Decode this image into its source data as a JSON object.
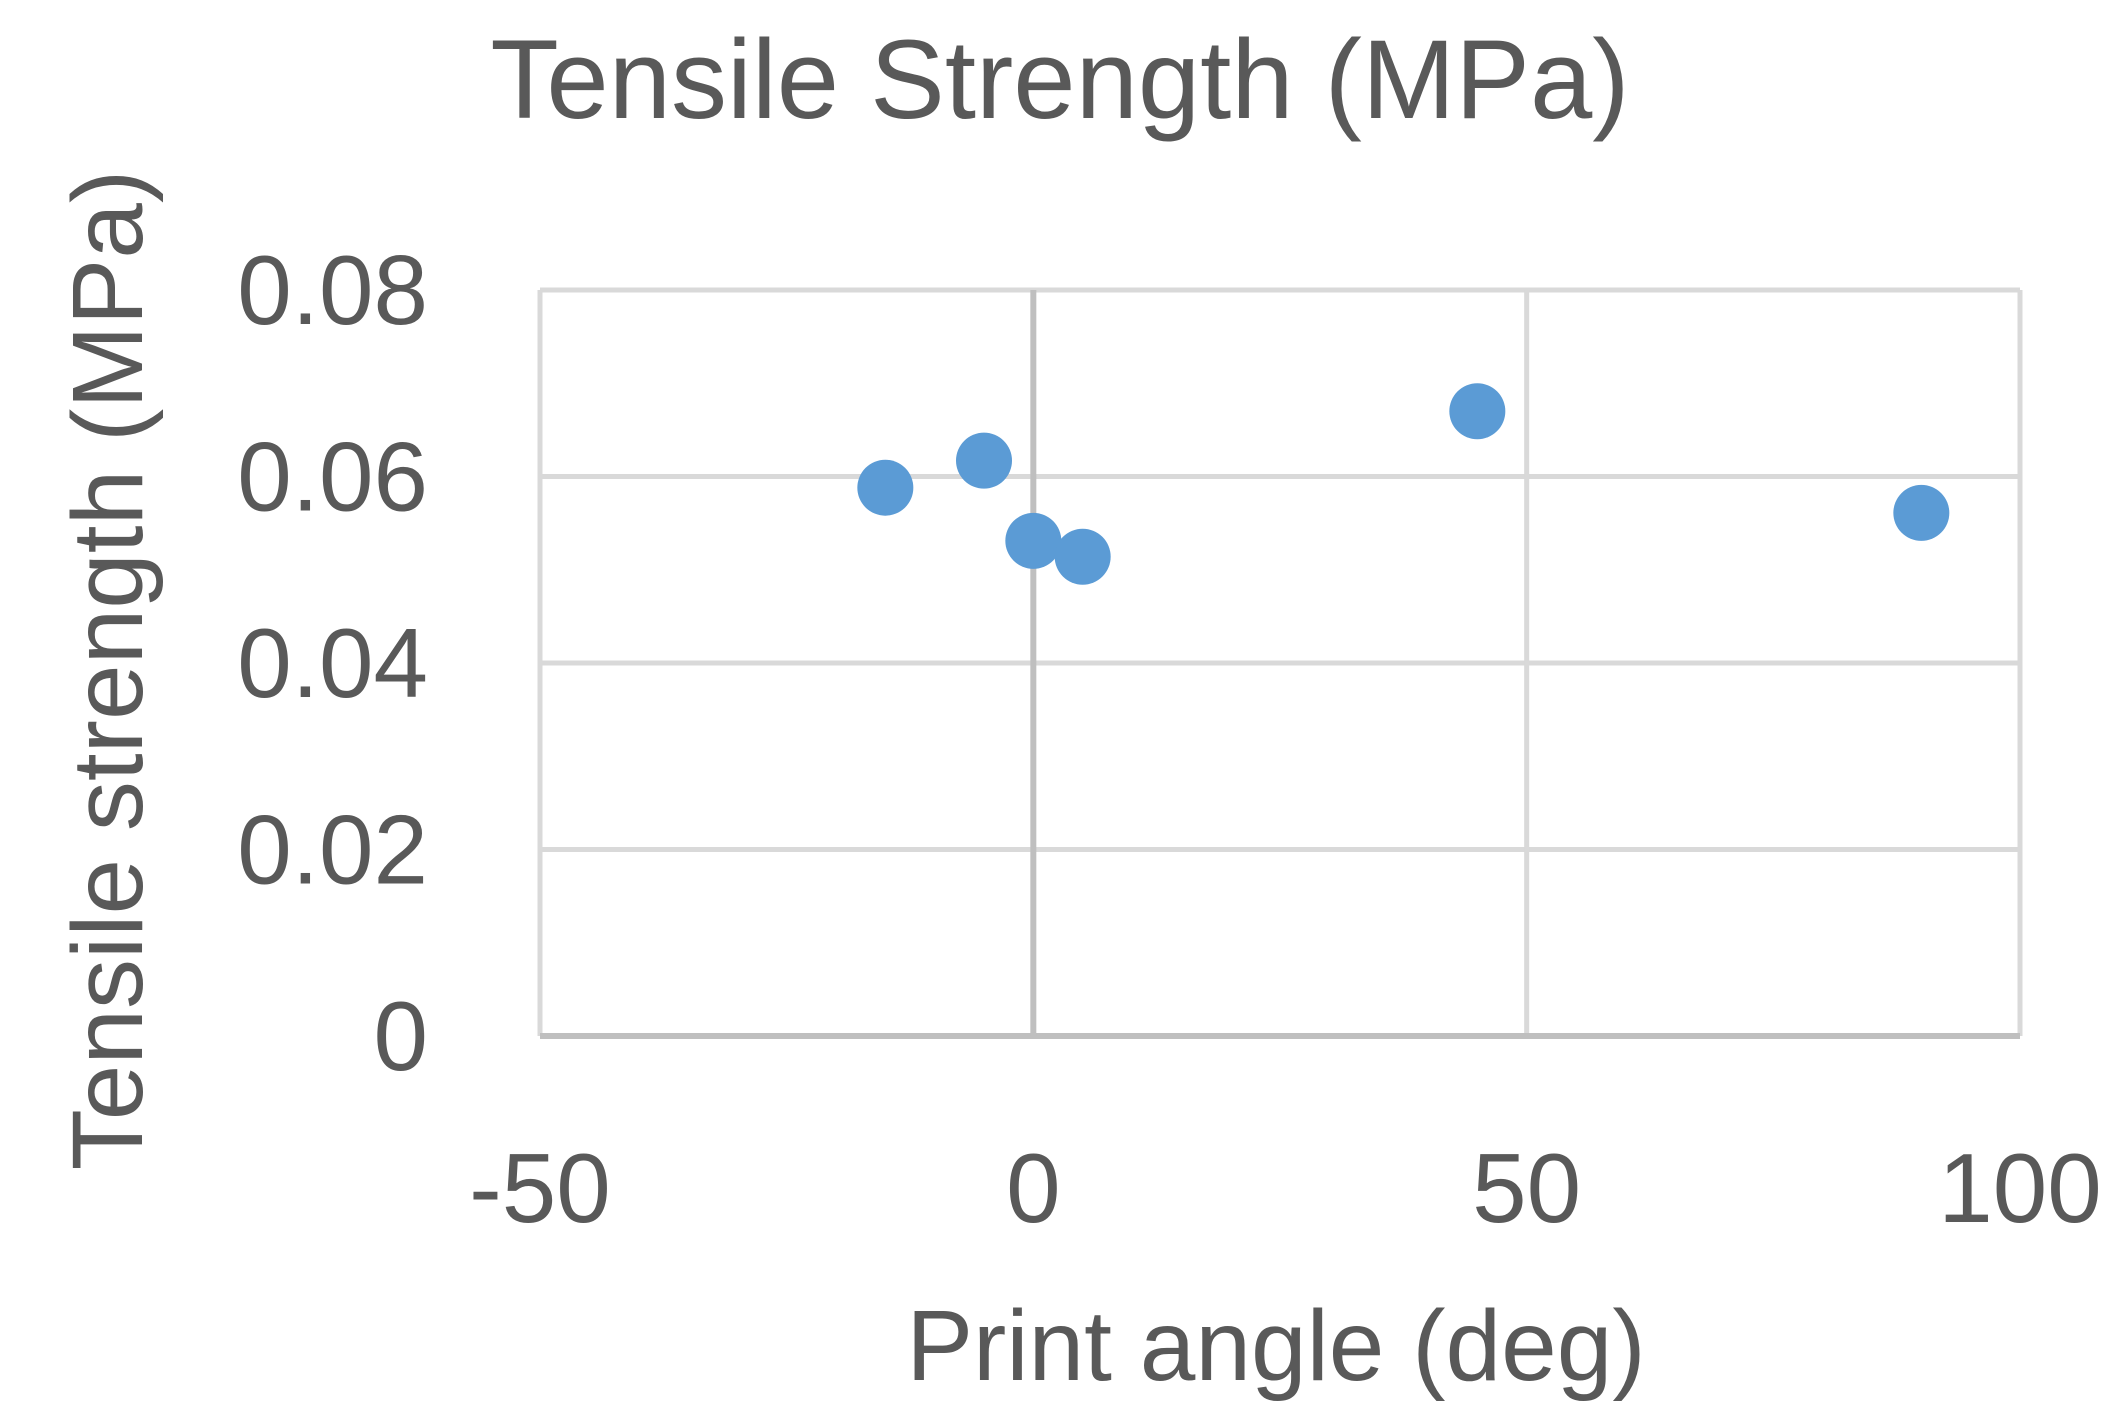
{
  "chart_data": {
    "type": "scatter",
    "title": "Tensile Strength (MPa)",
    "xlabel": "Print angle (deg)",
    "ylabel": "Tensile strength (MPa)",
    "xlim": [
      -50,
      100
    ],
    "ylim": [
      0,
      0.08
    ],
    "xticks": [
      -50,
      0,
      50,
      100
    ],
    "xtick_labels": [
      "-50",
      "0",
      "50",
      "100"
    ],
    "yticks": [
      0,
      0.02,
      0.04,
      0.06,
      0.08
    ],
    "ytick_labels": [
      "0",
      "0.02",
      "0.04",
      "0.06",
      "0.08"
    ],
    "grid": true,
    "legend": "none",
    "marker_color": "#5b9bd5",
    "series": [
      {
        "points": [
          {
            "x": -15,
            "y": 0.0588
          },
          {
            "x": -5,
            "y": 0.0617
          },
          {
            "x": 0,
            "y": 0.0531
          },
          {
            "x": 5,
            "y": 0.0514
          },
          {
            "x": 45,
            "y": 0.067
          },
          {
            "x": 90,
            "y": 0.0561
          }
        ]
      }
    ]
  }
}
